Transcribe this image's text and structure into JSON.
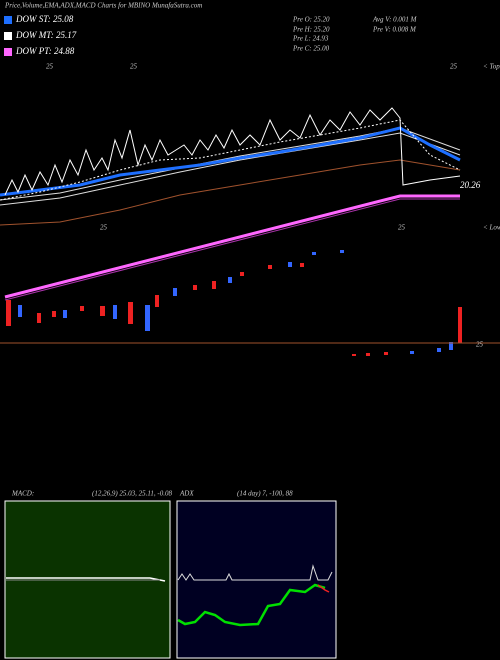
{
  "header": {
    "title": "Price,Volume,EMA,ADX,MACD Charts for MBINO MunafaSutra.com"
  },
  "legend": [
    "DOW ST: 25.08",
    "DOW MT: 25.17",
    "DOW PT: 24.88"
  ],
  "info": [
    "Pre  O: 25.20",
    "Pre  H: 25.20",
    "Pre  L: 24.93",
    "Pre  C: 25.00",
    "Avg V: 0.001 M",
    "Pre  V: 0.008  M"
  ],
  "labels": {
    "tops": "< Tops",
    "lows": "< Lows",
    "last": "20.26",
    "price": "25",
    "top_marks": [
      "25",
      "25",
      "25"
    ],
    "low_marks": [
      "25",
      "25"
    ]
  },
  "macd": {
    "name": "MACD:",
    "params": "(12,26,9) 25.03, 25.11, -0.08"
  },
  "adx": {
    "name": "ADX",
    "params": "(14  day) 7, -100, 88"
  }
}
